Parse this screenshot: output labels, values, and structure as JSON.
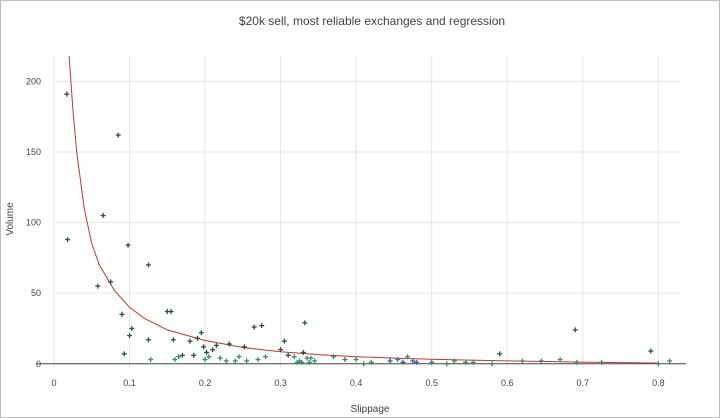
{
  "chart_data": {
    "type": "scatter",
    "title": "$20k sell, most reliable exchanges and regression",
    "xlabel": "Slippage",
    "ylabel": "Volume",
    "xlim": [
      0,
      0.83
    ],
    "ylim": [
      -3,
      218
    ],
    "x_ticks": [
      0,
      0.1,
      0.2,
      0.3,
      0.4,
      0.5,
      0.6,
      0.7,
      0.8
    ],
    "x_tick_labels": [
      "0",
      "0.1",
      "0.2",
      "0.3",
      "0.4",
      "0.5",
      "0.6",
      "0.7",
      "0.8"
    ],
    "y_ticks": [
      0,
      50,
      100,
      150,
      200
    ],
    "y_tick_labels": [
      "0",
      "50",
      "100",
      "150",
      "200"
    ],
    "grid": true,
    "colors": {
      "markers_dark": "#2f4f4f",
      "markers_green": "#3a8a6e",
      "markers_blue": "#3b5ca8",
      "regression_line": "#c0392b",
      "grid": "#e6e6e6",
      "zero_line": "#444444"
    },
    "series": [
      {
        "marker": "cross",
        "x": [
          0.017,
          0.018,
          0.058,
          0.065,
          0.075,
          0.085,
          0.09,
          0.093,
          0.098,
          0.1,
          0.103,
          0.125,
          0.125,
          0.128,
          0.15,
          0.155,
          0.158,
          0.16,
          0.165,
          0.17,
          0.18,
          0.185,
          0.19,
          0.195,
          0.198,
          0.2,
          0.202,
          0.205,
          0.21,
          0.215,
          0.22,
          0.228,
          0.232,
          0.24,
          0.245,
          0.252,
          0.255,
          0.265,
          0.27,
          0.275,
          0.28,
          0.3,
          0.305,
          0.31,
          0.318,
          0.322,
          0.325,
          0.328,
          0.33,
          0.332,
          0.335,
          0.338,
          0.34,
          0.345,
          0.37,
          0.385,
          0.4,
          0.41,
          0.42,
          0.445,
          0.455,
          0.462,
          0.468,
          0.475,
          0.48,
          0.5,
          0.52,
          0.53,
          0.545,
          0.555,
          0.58,
          0.59,
          0.62,
          0.645,
          0.67,
          0.69,
          0.692,
          0.725,
          0.79,
          0.8,
          0.815
        ],
        "y": [
          191,
          88,
          55,
          105,
          58,
          162,
          35,
          7,
          84,
          20,
          25,
          70,
          17,
          3,
          37,
          37,
          17,
          3,
          5,
          6,
          16,
          6,
          18,
          22,
          12,
          3,
          8,
          5,
          10,
          13,
          4,
          2,
          14,
          2,
          5,
          12,
          2,
          26,
          3,
          27,
          5,
          10,
          16,
          6,
          5,
          1,
          2,
          1,
          8,
          29,
          4,
          1,
          4,
          2,
          5,
          3,
          3,
          0,
          1,
          2,
          3,
          1,
          5,
          2,
          1,
          1,
          0,
          2,
          1,
          1,
          0,
          7,
          2,
          2,
          3,
          24,
          1,
          1,
          9,
          0,
          2
        ]
      }
    ],
    "regression": {
      "x": [
        0.02,
        0.025,
        0.03,
        0.04,
        0.05,
        0.06,
        0.08,
        0.1,
        0.12,
        0.15,
        0.2,
        0.25,
        0.3,
        0.35,
        0.4,
        0.45,
        0.5,
        0.55,
        0.6,
        0.65,
        0.7,
        0.75,
        0.8
      ],
      "y": [
        218,
        180,
        150,
        110,
        85,
        70,
        52,
        40,
        32,
        24,
        16.5,
        11.5,
        8.5,
        6.5,
        5,
        4,
        3.2,
        2.6,
        2,
        1.6,
        1.2,
        0.8,
        0.5
      ]
    }
  }
}
